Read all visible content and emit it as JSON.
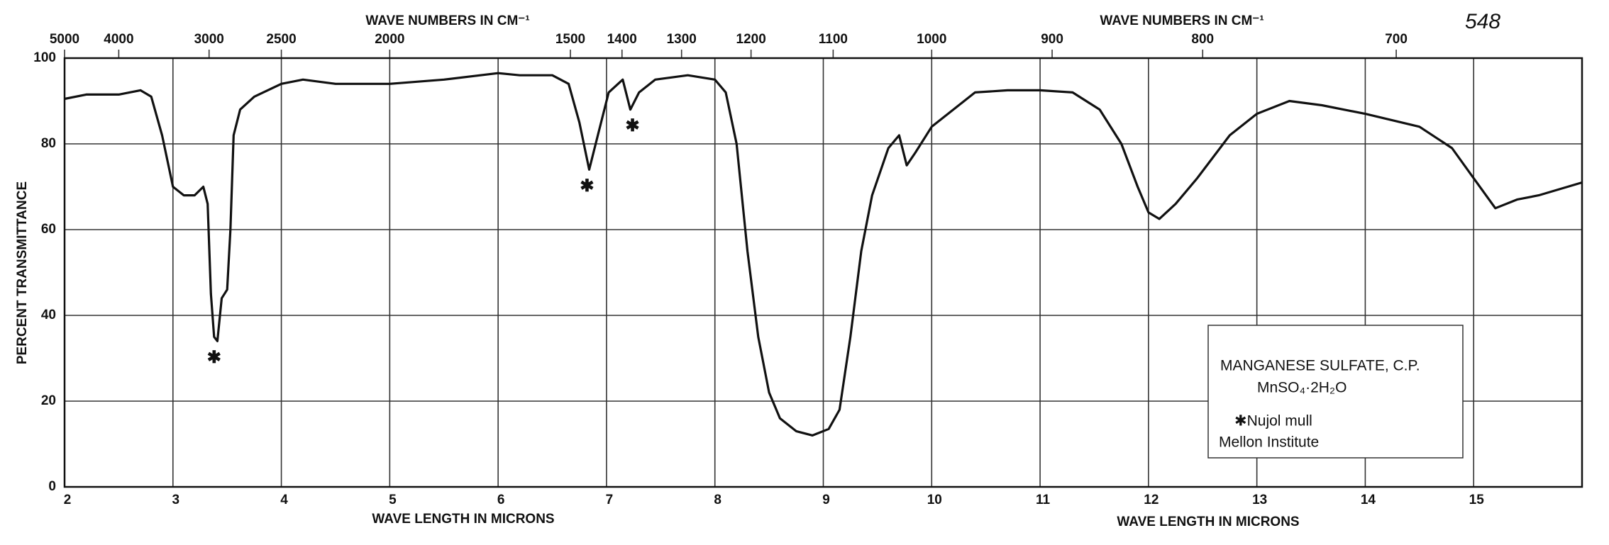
{
  "chart_data": {
    "type": "line",
    "x_label": "WAVE LENGTH IN MICRONS",
    "x2_label": "WAVE NUMBERS IN CM⁻¹",
    "y_label": "PERCENT TRANSMITTANCE",
    "page_number": "548",
    "sample_box": [
      "MANGANESE SULFATE, C.P.",
      "MnSO₄·2H₂O",
      "✱Nujol mull",
      "Mellon Institute"
    ],
    "color": "#111111",
    "x": [
      2.0,
      2.2,
      2.5,
      2.7,
      2.8,
      2.9,
      3.0,
      3.1,
      3.2,
      3.28,
      3.32,
      3.35,
      3.38,
      3.41,
      3.45,
      3.5,
      3.53,
      3.56,
      3.62,
      3.75,
      4.0,
      4.2,
      4.5,
      5.0,
      5.5,
      6.0,
      6.2,
      6.5,
      6.65,
      6.75,
      6.84,
      6.92,
      7.02,
      7.15,
      7.22,
      7.3,
      7.45,
      7.75,
      8.0,
      8.1,
      8.2,
      8.3,
      8.4,
      8.5,
      8.6,
      8.75,
      8.9,
      9.05,
      9.15,
      9.25,
      9.35,
      9.45,
      9.6,
      9.7,
      9.77,
      9.85,
      10.0,
      10.2,
      10.4,
      10.7,
      11.0,
      11.3,
      11.55,
      11.75,
      11.9,
      12.0,
      12.1,
      12.25,
      12.45,
      12.75,
      13.0,
      13.3,
      13.6,
      14.0,
      14.5,
      14.8,
      15.0,
      15.2,
      15.4,
      15.6,
      16.0
    ],
    "values": [
      90.5,
      91.5,
      91.5,
      92.5,
      91,
      82,
      70,
      68,
      68,
      70,
      66,
      45,
      35,
      34,
      44,
      46,
      60,
      82,
      88,
      91,
      94,
      95,
      94,
      94,
      95,
      96.5,
      96,
      96,
      94,
      85,
      74,
      82,
      92,
      95,
      88,
      92,
      95,
      96,
      95,
      92,
      80,
      55,
      35,
      22,
      16,
      13,
      12,
      13.5,
      18,
      35,
      55,
      68,
      79,
      82,
      75,
      78,
      84,
      88,
      92,
      92.5,
      92.5,
      92,
      88,
      80,
      70,
      64,
      62.5,
      66,
      72,
      82,
      87,
      90,
      89,
      87,
      84,
      79,
      72,
      65,
      67,
      68,
      71
    ],
    "annotations": [
      {
        "text": "✱",
        "x": 3.38,
        "y": 30
      },
      {
        "text": "✱",
        "x": 6.82,
        "y": 70
      },
      {
        "text": "✱",
        "x": 7.24,
        "y": 84
      }
    ],
    "xlim": [
      2,
      16
    ],
    "xticks": [
      2,
      3,
      4,
      5,
      6,
      7,
      8,
      9,
      10,
      11,
      12,
      13,
      14,
      15
    ],
    "x2ticks": [
      5000,
      4000,
      3000,
      2500,
      2000,
      1500,
      1400,
      1300,
      1200,
      1100,
      1000,
      900,
      800,
      700
    ],
    "ylim": [
      0,
      100
    ],
    "yticks": [
      0,
      20,
      40,
      60,
      80,
      100
    ],
    "grid": true
  }
}
